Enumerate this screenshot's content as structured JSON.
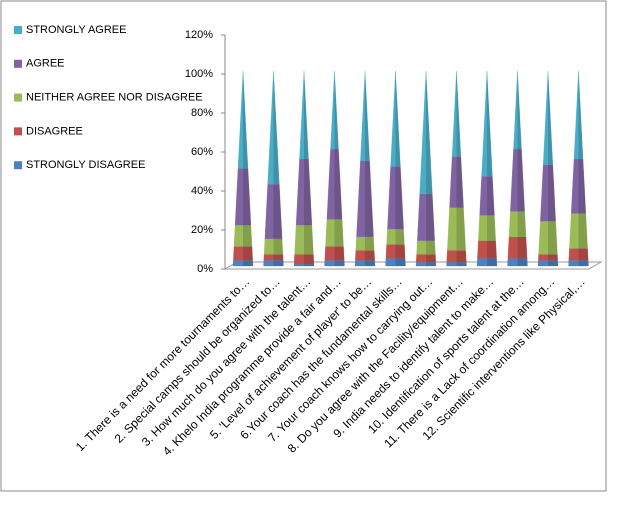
{
  "chart_data": {
    "type": "cone",
    "categories": [
      "1. There is a need for more tournaments to…",
      "2. Special camps should be organized to…",
      "3. How much do you agree with the talent…",
      "4. Khelo India programme provide a fair and…",
      "5. 'Level of achievement of player' to be…",
      "6.Your coach has the fundamental skills…",
      "7. Your coach knows how to carrying out…",
      "8. Do you agree with the Facility/equipment…",
      "9. India needs to identify talent to make…",
      "10. Identification of sports talent at the…",
      "11. There is a Lack of coordination among…",
      "12. Scientific interventions like Physical,…"
    ],
    "series": [
      {
        "name": "STRONGLY DISAGREE",
        "color": "#4f81bd",
        "values": [
          3,
          3,
          1,
          3,
          3,
          4,
          2,
          2,
          4,
          4,
          3,
          3
        ]
      },
      {
        "name": "DISAGREE",
        "color": "#c0504d",
        "values": [
          7,
          3,
          5,
          7,
          5,
          7,
          4,
          6,
          9,
          11,
          3,
          6
        ]
      },
      {
        "name": "NEITHER AGREE NOR DISAGREE",
        "color": "#9bbb59",
        "values": [
          11,
          8,
          15,
          14,
          7,
          8,
          7,
          22,
          13,
          13,
          17,
          18
        ]
      },
      {
        "name": "AGREE",
        "color": "#8064a2",
        "values": [
          29,
          28,
          34,
          36,
          39,
          32,
          24,
          26,
          20,
          32,
          29,
          28
        ]
      },
      {
        "name": "STRONGLY AGREE",
        "color": "#4bacc6",
        "values": [
          50,
          58,
          45,
          40,
          46,
          49,
          63,
          44,
          54,
          40,
          48,
          45
        ]
      }
    ],
    "ylim": [
      0,
      120
    ],
    "yticks": [
      {
        "value": 0,
        "label": "0%"
      },
      {
        "value": 20,
        "label": "20%"
      },
      {
        "value": 40,
        "label": "40%"
      },
      {
        "value": 60,
        "label": "60%"
      },
      {
        "value": 80,
        "label": "80%"
      },
      {
        "value": 100,
        "label": "100%"
      },
      {
        "value": 120,
        "label": "120%"
      }
    ],
    "legend": "left"
  }
}
